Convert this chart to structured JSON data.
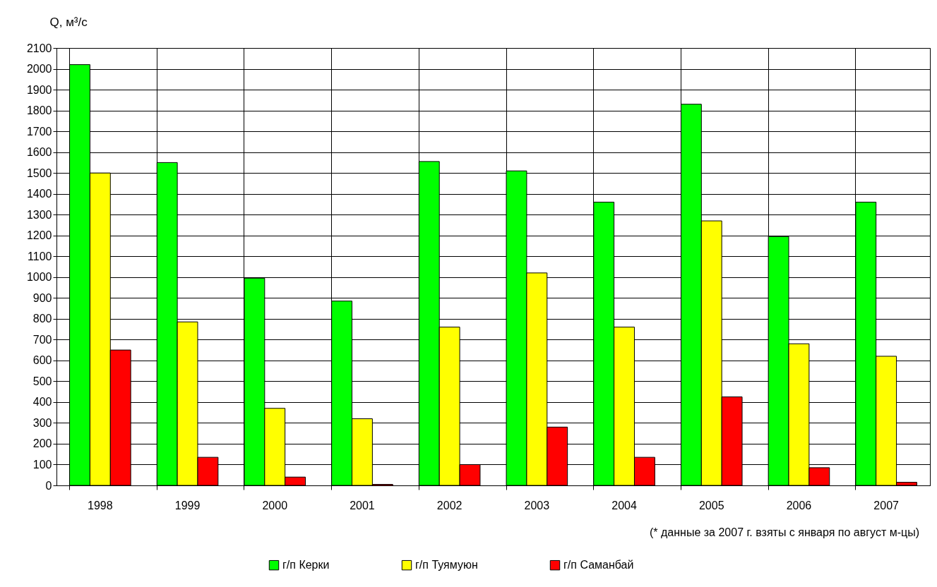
{
  "chart_data": {
    "type": "bar",
    "ylabel": "Q, м³/с",
    "categories": [
      "1998",
      "1999",
      "2000",
      "2001",
      "2002",
      "2003",
      "2004",
      "2005",
      "2006",
      "2007"
    ],
    "series": [
      {
        "name": "г/п Керки",
        "color": "#00ff00",
        "values": [
          2020,
          1550,
          995,
          885,
          1555,
          1510,
          1360,
          1830,
          1195,
          1360
        ]
      },
      {
        "name": "г/п Туямуюн",
        "color": "#ffff00",
        "values": [
          1500,
          785,
          370,
          320,
          760,
          1020,
          760,
          1270,
          680,
          620
        ]
      },
      {
        "name": "г/п Саманбай",
        "color": "#ff0000",
        "values": [
          650,
          135,
          40,
          5,
          100,
          280,
          135,
          425,
          85,
          15
        ]
      }
    ],
    "ylim": [
      0,
      2100
    ],
    "yticks": [
      0,
      100,
      200,
      300,
      400,
      500,
      600,
      700,
      800,
      900,
      1000,
      1100,
      1200,
      1300,
      1400,
      1500,
      1600,
      1700,
      1800,
      1900,
      2000,
      2100
    ],
    "grid": true,
    "legend": "bottom",
    "annotations": [
      "(* данные за 2007 г. взяты с января по август м-цы)"
    ]
  }
}
